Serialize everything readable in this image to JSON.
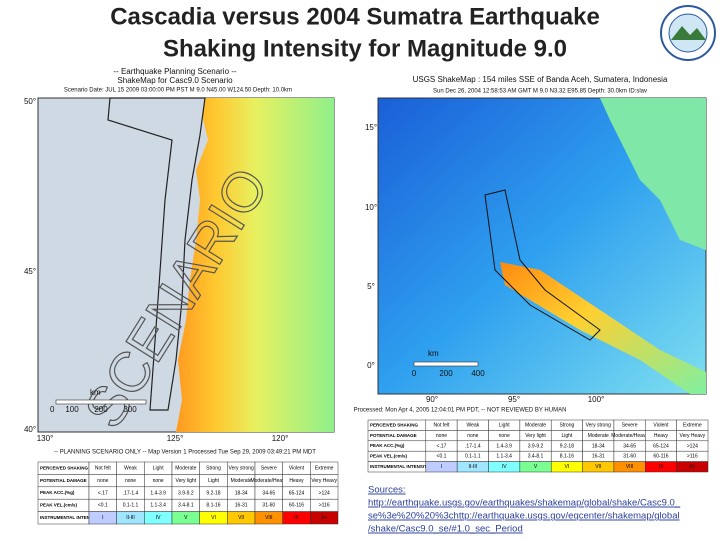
{
  "title": {
    "line1": "Cascadia versus 2004 Sumatra Earthquake",
    "line2": "Shaking Intensity for Magnitude 9.0"
  },
  "left_map": {
    "header": [
      "-- Earthquake Planning Scenario --",
      "ShakeMap for Casc9.0 Scenario",
      "Scenario Date: JUL 15 2009 03:00:00 PM PST  M 9.0  N45.00 W124.50  Depth: 10.0km"
    ],
    "watermark": "SCENARIO",
    "lat_labels": [
      "50°",
      "45°",
      "40°"
    ],
    "lon_labels": [
      "130°",
      "125°",
      "120°"
    ],
    "scale": {
      "unit": "km",
      "ticks": [
        "0",
        "100",
        "200",
        "300"
      ]
    },
    "footer": "-- PLANNING SCENARIO ONLY -- Map Version 1 Processed Tue Sep 29, 2009 03:49:21 PM MDT"
  },
  "right_map": {
    "header": [
      "USGS ShakeMap : 154 miles SSE of Banda Aceh, Sumatera, Indonesia",
      "Sun Dec 26, 2004 12:58:53 AM GMT  M 9.0  N3.32 E95.85  Depth: 30.0km  ID:slav"
    ],
    "lat_labels": [
      "15°",
      "10°",
      "5°",
      "0°"
    ],
    "lon_labels": [
      "90°",
      "95°",
      "100°"
    ],
    "scale": {
      "unit": "km",
      "ticks": [
        "0",
        "200",
        "400"
      ]
    },
    "footer": "Processed: Mon Apr 4, 2005 12:04:01 PM PDT, -- NOT REVIEWED BY HUMAN"
  },
  "legend": {
    "row_labels": [
      "PERCEIVED SHAKING",
      "POTENTIAL DAMAGE",
      "PEAK ACC.(%g)",
      "PEAK VEL.(cm/s)",
      "INSTRUMENTAL INTENSITY"
    ],
    "rows": [
      [
        "Not felt",
        "Weak",
        "Light",
        "Moderate",
        "Strong",
        "Very strong",
        "Severe",
        "Violent",
        "Extreme"
      ],
      [
        "none",
        "none",
        "none",
        "Very light",
        "Light",
        "Moderate",
        "Moderate/Heavy",
        "Heavy",
        "Very Heavy"
      ],
      [
        "<.17",
        ".17-1.4",
        "1.4-3.9",
        "3.9-9.2",
        "9.2-18",
        "18-34",
        "34-65",
        "65-124",
        ">124"
      ],
      [
        "<0.1",
        "0.1-1.1",
        "1.1-3.4",
        "3.4-8.1",
        "8.1-16",
        "16-31",
        "31-60",
        "60-116",
        ">116"
      ],
      [
        "I",
        "II-III",
        "IV",
        "V",
        "VI",
        "VII",
        "VIII",
        "IX",
        "X+"
      ]
    ]
  },
  "sources": {
    "label": "Sources:",
    "lines": [
      "http://earthquake.usgs.gov/earthquakes/shakemap/global/shake/Casc9.0_",
      "se%3e%20%20%3chttp://earthquake.usgs.gov/eqcenter/shakemap/global",
      "/shake/Casc9.0_se/#1.0_sec_Period"
    ]
  }
}
